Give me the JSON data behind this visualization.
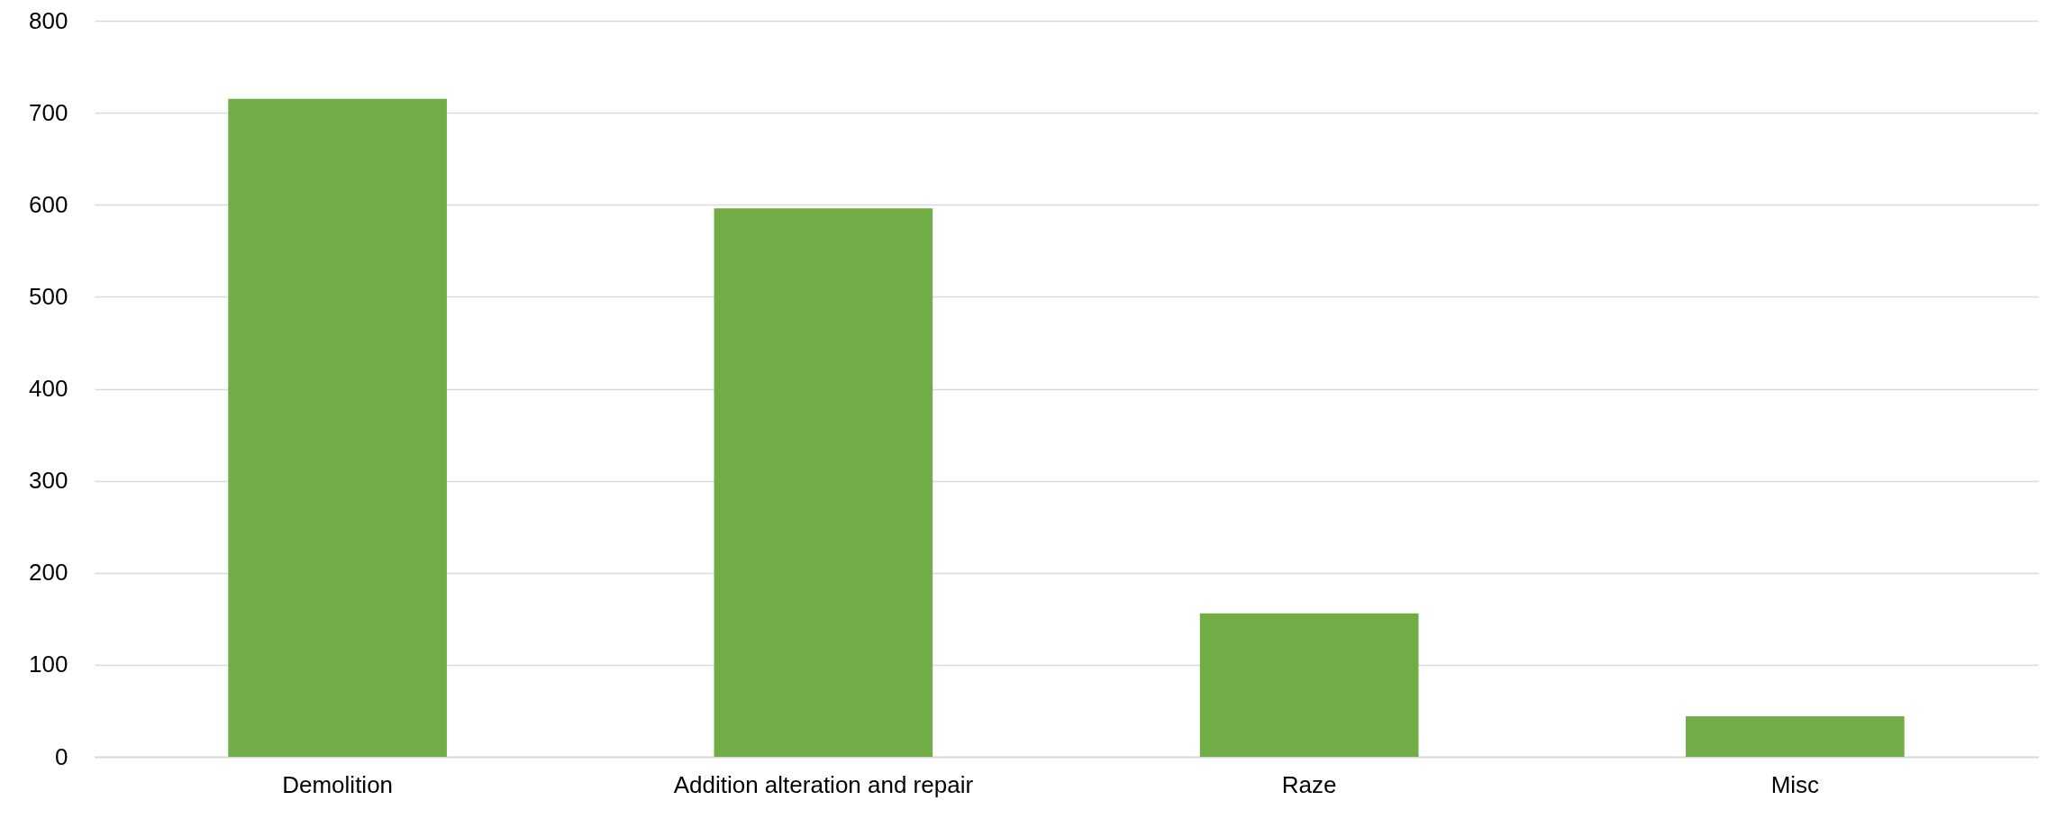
{
  "chart_data": {
    "type": "bar",
    "categories": [
      "Demolition",
      "Addition alteration and repair",
      "Raze",
      "Misc"
    ],
    "values": [
      715,
      596,
      156,
      44
    ],
    "color": "#70ad47",
    "ylim": [
      0,
      800
    ],
    "yticks": [
      0,
      100,
      200,
      300,
      400,
      500,
      600,
      700,
      800
    ],
    "grid": "y"
  }
}
